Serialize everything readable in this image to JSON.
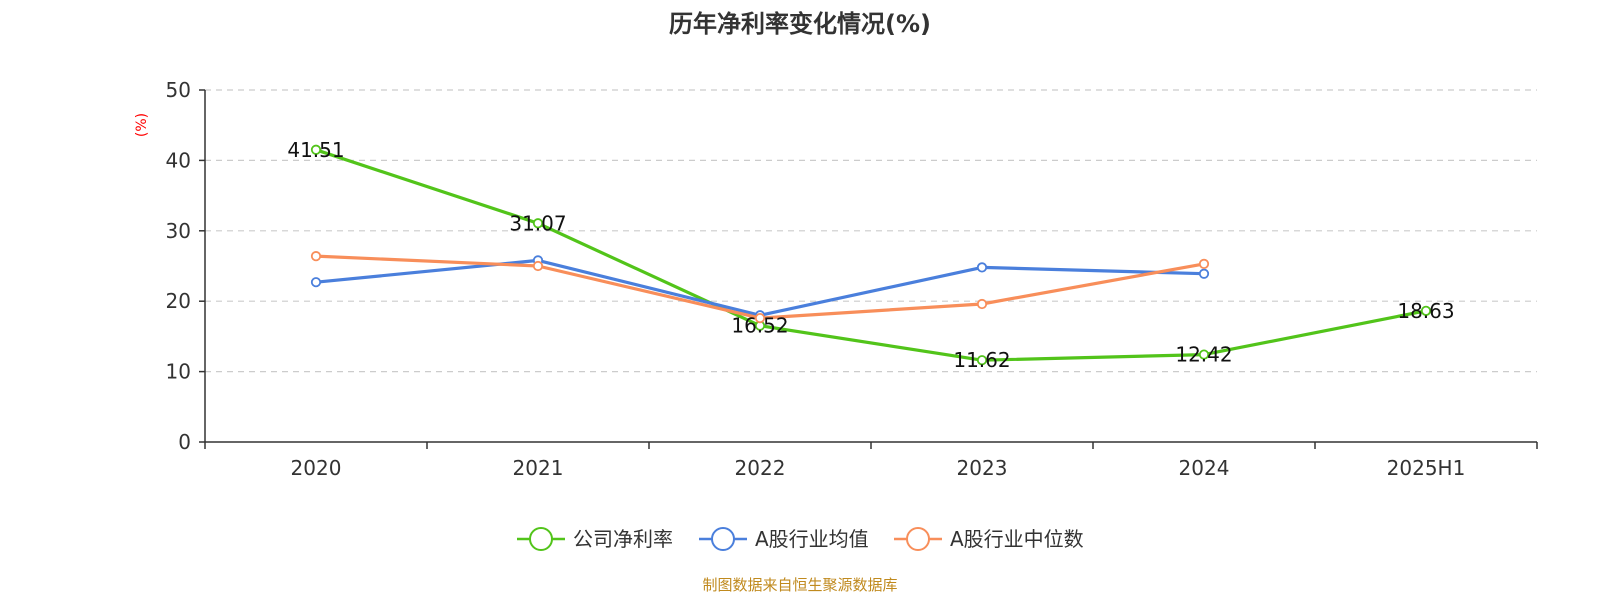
{
  "chart_data": {
    "type": "line",
    "title": "历年净利率变化情况(%)",
    "ylabel": "(%)",
    "xlabel": "",
    "categories": [
      "2020",
      "2021",
      "2022",
      "2023",
      "2024",
      "2025H1"
    ],
    "ylim": [
      0,
      50
    ],
    "yticks": [
      0,
      10,
      20,
      30,
      40,
      50
    ],
    "grid": true,
    "legend_position": "bottom",
    "series": [
      {
        "name": "公司净利率",
        "color": "#52c41a",
        "values": [
          41.51,
          31.07,
          16.52,
          11.62,
          12.42,
          18.63
        ],
        "labels": [
          "41.51",
          "31.07",
          "16.52",
          "11.62",
          "12.42",
          "18.63"
        ],
        "show_labels": true
      },
      {
        "name": "A股行业均值",
        "color": "#4a7fdc",
        "values": [
          22.7,
          25.8,
          18.0,
          24.8,
          23.9,
          null
        ],
        "show_labels": false
      },
      {
        "name": "A股行业中位数",
        "color": "#f88e5a",
        "values": [
          26.4,
          25.0,
          17.6,
          19.6,
          25.3,
          null
        ],
        "show_labels": false
      }
    ],
    "source": "制图数据来自恒生聚源数据库"
  }
}
